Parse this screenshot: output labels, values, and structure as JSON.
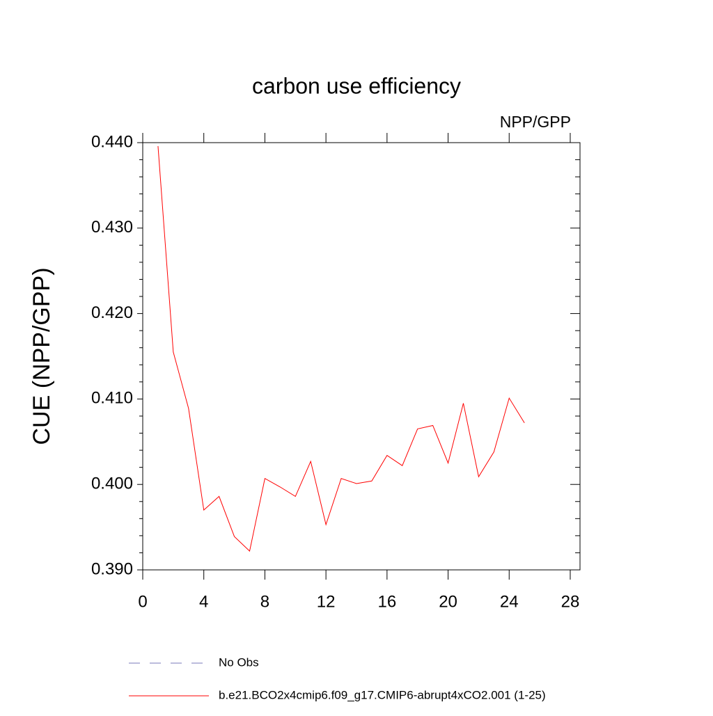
{
  "chart_data": {
    "type": "line",
    "title": "carbon use efficiency",
    "subtitle": "NPP/GPP",
    "ylabel": "CUE  (NPP/GPP)",
    "x": [
      1,
      2,
      3,
      4,
      5,
      6,
      7,
      8,
      9,
      10,
      11,
      12,
      13,
      14,
      15,
      16,
      17,
      18,
      19,
      20,
      21,
      22,
      23,
      24,
      25
    ],
    "series": [
      {
        "name": "b.e21.BCO2x4cmip6.f09_g17.CMIP6-abrupt4xCO2.001 (1-25)",
        "color": "#ff0000",
        "values": [
          0.4396,
          0.4155,
          0.4089,
          0.397,
          0.3986,
          0.3939,
          0.3922,
          0.4007,
          0.3997,
          0.3986,
          0.4027,
          0.3953,
          0.4007,
          0.4001,
          0.4004,
          0.4034,
          0.4022,
          0.4065,
          0.4069,
          0.4025,
          0.4095,
          0.4009,
          0.4038,
          0.4101,
          0.4072
        ]
      }
    ],
    "reference": {
      "name": "No Obs",
      "color": "#7a7ab8",
      "line_style": "dashed"
    },
    "xlim": [
      0,
      28.64
    ],
    "xticks": [
      0,
      4,
      8,
      12,
      16,
      20,
      24,
      28
    ],
    "ylim": [
      0.39,
      0.44
    ],
    "yticks": [
      {
        "value": 0.39,
        "label": "0.390"
      },
      {
        "value": 0.4,
        "label": "0.400"
      },
      {
        "value": 0.41,
        "label": "0.410"
      },
      {
        "value": 0.42,
        "label": "0.420"
      },
      {
        "value": 0.43,
        "label": "0.430"
      },
      {
        "value": 0.44,
        "label": "0.440"
      }
    ],
    "yminorticks": [
      0.392,
      0.394,
      0.396,
      0.398,
      0.402,
      0.404,
      0.406,
      0.408,
      0.412,
      0.414,
      0.416,
      0.418,
      0.422,
      0.424,
      0.426,
      0.428,
      0.432,
      0.434,
      0.436,
      0.438
    ]
  }
}
